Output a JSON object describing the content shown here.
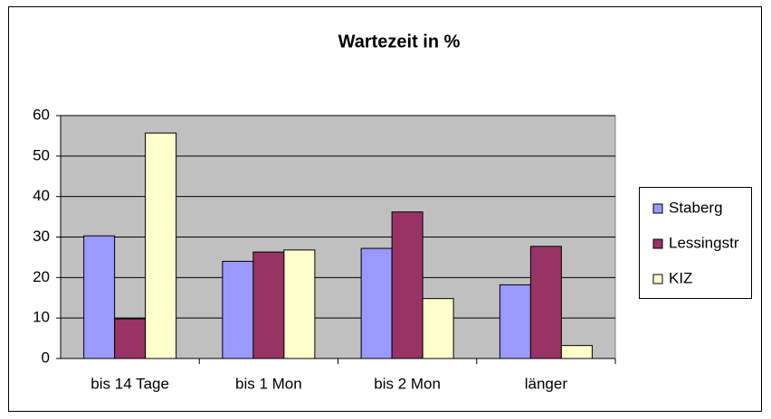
{
  "chart_data": {
    "type": "bar",
    "title": "Wartezeit in %",
    "categories": [
      "bis 14 Tage",
      "bis 1 Mon",
      "bis 2 Mon",
      "länger"
    ],
    "series": [
      {
        "name": "Staberg",
        "color": "#9999ff",
        "values": [
          30.3,
          24,
          27.2,
          18.2
        ]
      },
      {
        "name": "Lessingstr",
        "color": "#993366",
        "values": [
          9.8,
          26.3,
          36.2,
          27.7
        ]
      },
      {
        "name": "KIZ",
        "color": "#ffffcc",
        "values": [
          55.7,
          26.8,
          14.8,
          3.2
        ]
      }
    ],
    "ylim": [
      0,
      60
    ],
    "yticks": [
      0,
      10,
      20,
      30,
      40,
      50,
      60
    ],
    "grid": true,
    "legend": "right"
  }
}
